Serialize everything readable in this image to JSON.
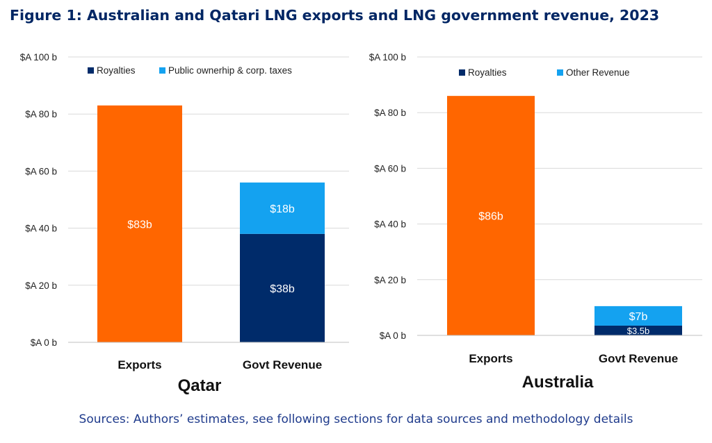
{
  "title": "Figure 1: Australian and Qatari LNG exports and LNG government revenue, 2023",
  "source": "Sources: Authors’ estimates, see following sections for data sources and methodology details",
  "colors": {
    "exports": "#ff6600",
    "royalties": "#002b6a",
    "other": "#14a2f0",
    "grid": "#d9d9d9"
  },
  "chart_data": [
    {
      "type": "bar",
      "stacked": true,
      "title": "Qatar",
      "categories": [
        "Exports",
        "Govt Revenue"
      ],
      "ylim": [
        0,
        100
      ],
      "yticks": [
        0,
        20,
        40,
        60,
        80,
        100
      ],
      "yticklabels": [
        "$A 0 b",
        "$A 20 b",
        "$A 40 b",
        "$A 60 b",
        "$A 80 b",
        "$A 100 b"
      ],
      "legend": [
        "Royalties",
        "Public ownerhip & corp. taxes"
      ],
      "legend_position": "top",
      "grid": true,
      "series": [
        {
          "name": "Exports",
          "values": [
            83,
            null
          ],
          "labels": [
            "$83b",
            ""
          ]
        },
        {
          "name": "Royalties",
          "values": [
            null,
            38
          ],
          "labels": [
            "",
            "$38b"
          ]
        },
        {
          "name": "Public ownerhip & corp. taxes",
          "values": [
            null,
            18
          ],
          "labels": [
            "",
            "$18b"
          ]
        }
      ]
    },
    {
      "type": "bar",
      "stacked": true,
      "title": "Australia",
      "categories": [
        "Exports",
        "Govt Revenue"
      ],
      "ylim": [
        0,
        100
      ],
      "yticks": [
        0,
        20,
        40,
        60,
        80,
        100
      ],
      "yticklabels": [
        "$A 0 b",
        "$A 20 b",
        "$A 40 b",
        "$A 60 b",
        "$A 80 b",
        "$A 100 b"
      ],
      "legend": [
        "Royalties",
        "Other Revenue"
      ],
      "legend_position": "top",
      "grid": true,
      "series": [
        {
          "name": "Exports",
          "values": [
            86,
            null
          ],
          "labels": [
            "$86b",
            ""
          ]
        },
        {
          "name": "Royalties",
          "values": [
            null,
            3.5
          ],
          "labels": [
            "",
            "$3.5b"
          ]
        },
        {
          "name": "Other Revenue",
          "values": [
            null,
            7
          ],
          "labels": [
            "",
            "$7b"
          ]
        }
      ]
    }
  ]
}
